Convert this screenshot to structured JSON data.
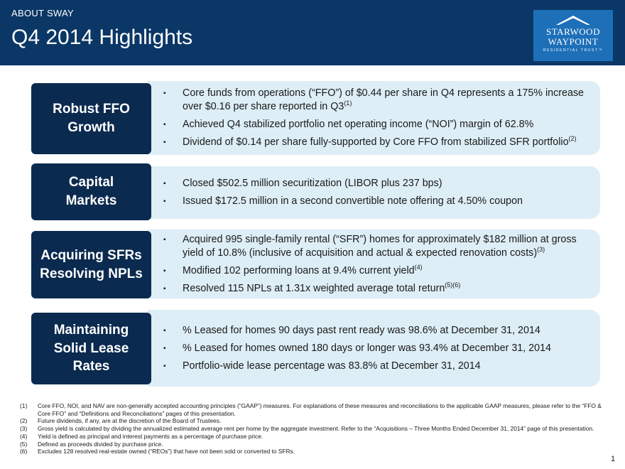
{
  "header": {
    "kicker": "ABOUT SWAY",
    "title": "Q4 2014 Highlights",
    "logo": {
      "line1": "STARWOOD",
      "line2": "WAYPOINT",
      "line3": "RESIDENTIAL TRUST™",
      "icon": "house-roof-icon"
    }
  },
  "sections": [
    {
      "label_lines": [
        "Robust FFO",
        "Growth"
      ],
      "bullets": [
        {
          "text": "Core funds from operations (“FFO”) of $0.44 per share in Q4 represents a 175% increase over $0.16 per share reported in Q3",
          "sup": "(1)"
        },
        {
          "text": "Achieved Q4 stabilized portfolio net operating income (“NOI”) margin of 62.8%",
          "sup": ""
        },
        {
          "text": "Dividend of $0.14 per share fully-supported by Core FFO from stabilized SFR portfolio",
          "sup": "(2)"
        }
      ]
    },
    {
      "label_lines": [
        "Capital",
        "Markets"
      ],
      "bullets": [
        {
          "text": "Closed $502.5 million securitization (LIBOR plus 237 bps)",
          "sup": ""
        },
        {
          "text": "Issued $172.5 million in a second convertible note offering at 4.50% coupon",
          "sup": ""
        }
      ]
    },
    {
      "label_lines": [
        "Acquiring SFRs",
        "Resolving NPLs"
      ],
      "bullets": [
        {
          "text": "Acquired 995 single-family rental (“SFR”) homes for approximately $182 million at gross yield of 10.8% (inclusive of acquisition and actual & expected renovation costs)",
          "sup": "(3)"
        },
        {
          "text": "Modified 102 performing loans at 9.4% current yield",
          "sup": "(4)"
        },
        {
          "text": "Resolved 115 NPLs at 1.31x weighted average total return",
          "sup": "(5)(6)"
        }
      ]
    },
    {
      "label_lines": [
        "Maintaining",
        "Solid Lease",
        "Rates"
      ],
      "bullets": [
        {
          "text": "% Leased for homes 90 days past rent ready was 98.6% at December 31, 2014",
          "sup": ""
        },
        {
          "text": "% Leased for homes owned 180 days or longer was 93.4% at December 31, 2014",
          "sup": ""
        },
        {
          "text": "Portfolio-wide lease percentage was 83.8% at December 31, 2014",
          "sup": ""
        }
      ]
    }
  ],
  "bullet_glyph": "▪",
  "footnotes": [
    {
      "num": "(1)",
      "text": "Core FFO, NOI, and NAV are non-generally accepted accounting principles (“GAAP”) measures.  For explanations of these measures and reconciliations to the applicable GAAP measures, please refer to the “FFO & Core FFO” and “Definitions and Reconciliations” pages of this presentation."
    },
    {
      "num": "(2)",
      "text": "Future dividends, if any, are at the discretion of the Board of Trustees."
    },
    {
      "num": "(3)",
      "text": "Gross yield is calculated by dividing the annualized estimated average rent per home by the aggregate investment.  Refer to the “Acquisitions – Three Months Ended December 31, 2014” page of this presentation."
    },
    {
      "num": "(4)",
      "text": "Yield is defined as principal and interest payments as a percentage of purchase price."
    },
    {
      "num": "(5)",
      "text": "Defined as proceeds divided by purchase price."
    },
    {
      "num": "(6)",
      "text": "Excludes 128 resolved  real-estate owned (“REOs”) that have not been sold or converted to SFRs."
    }
  ],
  "page_number": "1",
  "colors": {
    "header_bg": "#0b3766",
    "label_bg": "#0b2a4f",
    "panel_bg": "#ddeef6",
    "logo_bg": "#1d6fb8"
  }
}
